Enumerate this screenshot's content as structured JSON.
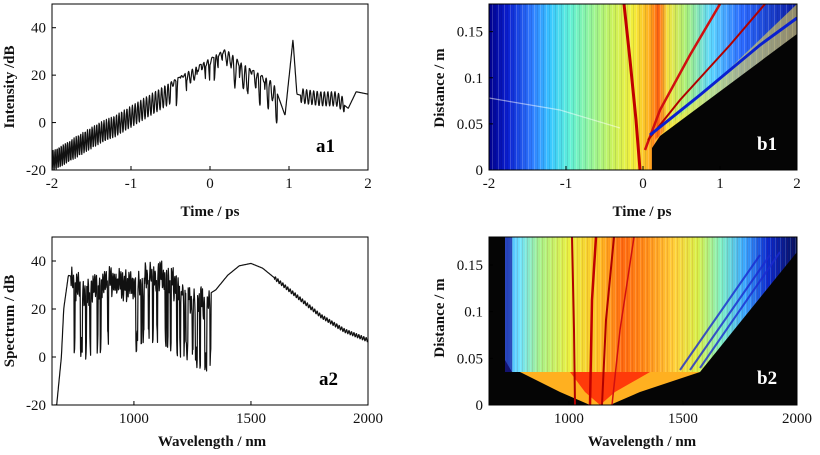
{
  "chart_data": [
    {
      "id": "a1",
      "type": "line",
      "panel_label": "a1",
      "xlabel": "Time / ps",
      "ylabel": "Intensity /dB",
      "xlim": [
        -2,
        2
      ],
      "ylim": [
        -20,
        50
      ],
      "xticks": [
        -2,
        -1,
        0,
        1,
        2
      ],
      "yticks": [
        -20,
        0,
        20,
        40
      ],
      "series": [
        {
          "x": [
            -2.0,
            -1.8,
            -1.6,
            -1.4,
            -1.2,
            -1.0,
            -0.8,
            -0.6,
            -0.4,
            -0.2,
            0.0,
            0.2,
            0.4,
            0.6,
            0.8,
            0.95,
            1.05,
            1.1,
            1.2,
            1.4,
            1.6,
            1.75,
            1.85,
            2.0
          ],
          "y": [
            -12,
            -8,
            -4,
            0,
            3,
            7,
            11,
            15,
            19,
            23,
            27,
            31,
            25,
            21,
            17,
            3,
            35,
            12,
            11,
            10,
            10,
            6,
            13,
            12
          ]
        }
      ]
    },
    {
      "id": "b1",
      "type": "heatmap",
      "panel_label": "b1",
      "xlabel": "Time / ps",
      "ylabel": "Distance / m",
      "xlim": [
        -2,
        2
      ],
      "ylim": [
        0,
        0.18
      ],
      "xticks": [
        -2,
        -1,
        0,
        1,
        2
      ],
      "yticks": [
        0,
        0.05,
        0.1,
        0.15
      ],
      "colormap": "jet"
    },
    {
      "id": "a2",
      "type": "line",
      "panel_label": "a2",
      "xlabel": "Wavelength / nm",
      "ylabel": "Spectrum / dB",
      "xlim": [
        650,
        2000
      ],
      "ylim": [
        -20,
        50
      ],
      "xticks": [
        1000,
        1500,
        2000
      ],
      "yticks": [
        -20,
        0,
        20,
        40
      ],
      "series": [
        {
          "x": [
            670,
            690,
            700,
            720,
            760,
            800,
            850,
            900,
            950,
            1000,
            1050,
            1100,
            1150,
            1200,
            1250,
            1300,
            1350,
            1400,
            1450,
            1500,
            1550,
            1600,
            1700,
            1800,
            1900,
            2000
          ],
          "y": [
            -20,
            0,
            20,
            34,
            33,
            30,
            32,
            34,
            33,
            32,
            36,
            37,
            35,
            30,
            28,
            25,
            28,
            34,
            38,
            39,
            37,
            33,
            25,
            17,
            11,
            7
          ]
        }
      ]
    },
    {
      "id": "b2",
      "type": "heatmap",
      "panel_label": "b2",
      "xlabel": "Wavelength / nm",
      "ylabel": "Distance / m",
      "xlim": [
        650,
        2000
      ],
      "ylim": [
        0,
        0.18
      ],
      "xticks": [
        1000,
        1500,
        2000
      ],
      "yticks": [
        0,
        0.05,
        0.1,
        0.15
      ],
      "colormap": "jet"
    }
  ]
}
